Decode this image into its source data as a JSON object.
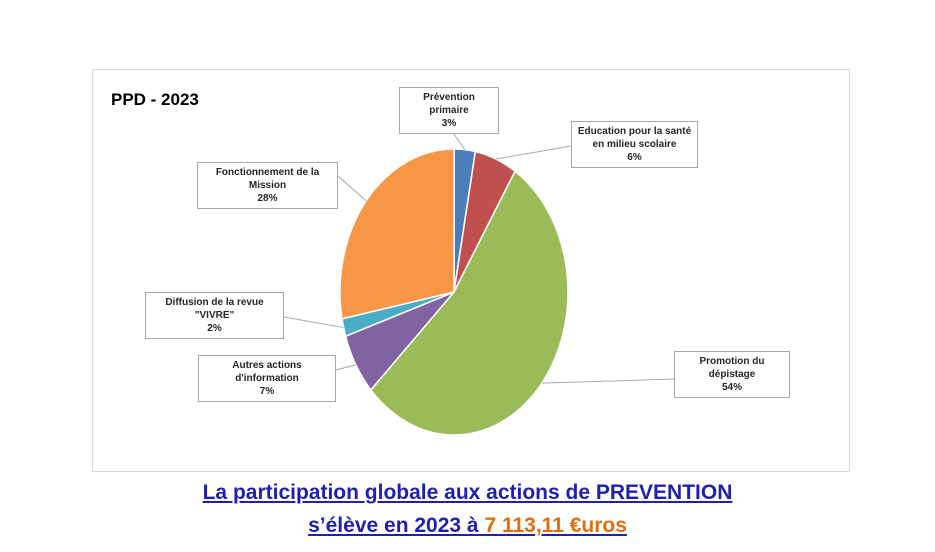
{
  "chart_data": {
    "type": "pie",
    "title": "PPD - 2023",
    "slices": [
      {
        "label": "Prévention primaire",
        "value": 3,
        "display": "3%",
        "color": "#4a7ebb"
      },
      {
        "label": "Education pour la santé en milieu scolaire",
        "value": 6,
        "display": "6%",
        "color": "#c0504d"
      },
      {
        "label": "Promotion du dépistage",
        "value": 54,
        "display": "54%",
        "color": "#9bbb59"
      },
      {
        "label": "Autres actions d'information",
        "value": 7,
        "display": "7%",
        "color": "#8064a2"
      },
      {
        "label": "Diffusion de la revue \"VIVRE\"",
        "value": 2,
        "display": "2%",
        "color": "#4bacc6"
      },
      {
        "label": "Fonctionnement de la Mission",
        "value": 28,
        "display": "28%",
        "color": "#f79646"
      }
    ]
  },
  "caption": {
    "line1": "La participation globale aux actions de PREVENTION",
    "line2_prefix": "s’élève en 2023 à",
    "amount": "7 113,11 €uros"
  }
}
